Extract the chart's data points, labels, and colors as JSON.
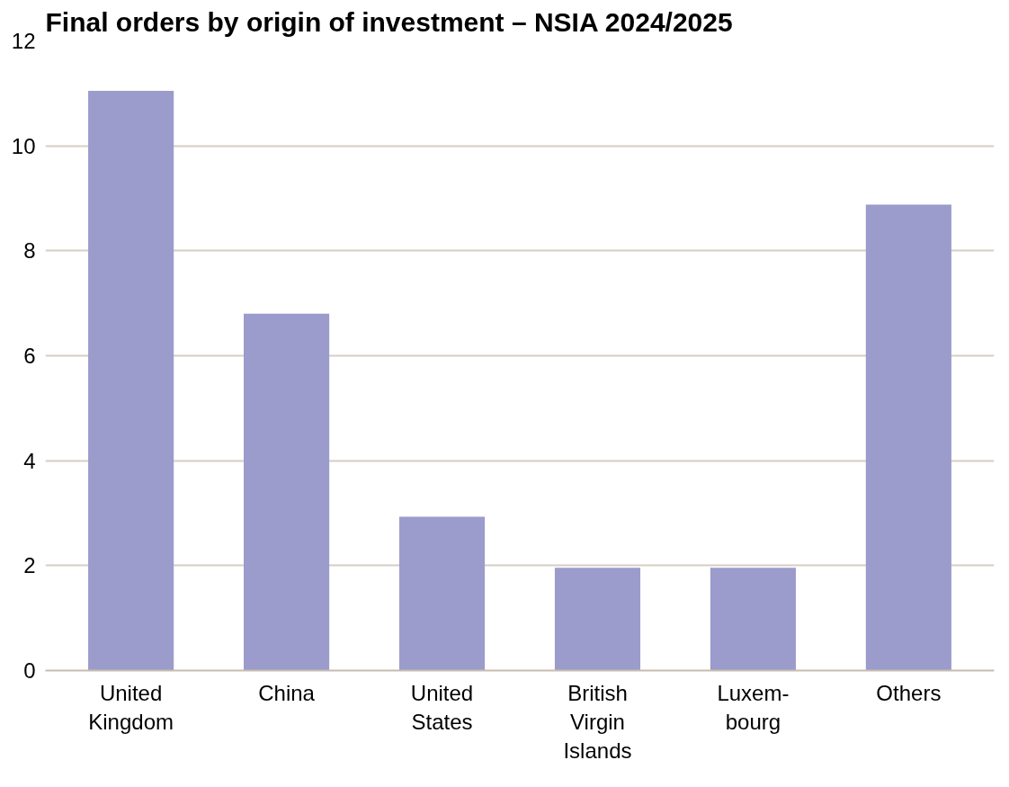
{
  "chart_data": {
    "type": "bar",
    "title": "Final orders by origin of investment – NSIA 2024/2025",
    "categories": [
      "United\nKingdom",
      "China",
      "United\nStates",
      "British\nVirgin\nIslands",
      "Luxem-\nbourg",
      "Others"
    ],
    "values": [
      11.05,
      6.8,
      2.93,
      1.96,
      1.96,
      8.88
    ],
    "color": "#9b9bcc",
    "ylim": [
      0,
      12
    ],
    "yticks": [
      0,
      2,
      4,
      6,
      8,
      10,
      12
    ],
    "grid": "y"
  }
}
